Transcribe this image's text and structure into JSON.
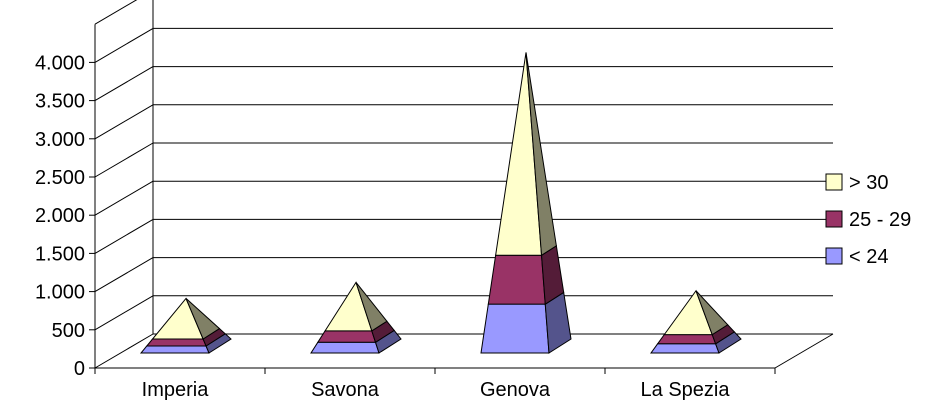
{
  "chart_data": {
    "type": "bar",
    "subtype": "3d-stacked-pyramid",
    "title": "",
    "xlabel": "",
    "ylabel": "",
    "categories": [
      "Imperia",
      "Savona",
      "Genova",
      "La Spezia"
    ],
    "series": [
      {
        "name": "< 24",
        "color": "#9999ff",
        "values": [
          100,
          150,
          650,
          130
        ]
      },
      {
        "name": "25 - 29",
        "color": "#993366",
        "values": [
          100,
          160,
          650,
          130
        ]
      },
      {
        "name": "> 30",
        "color": "#ffffcc",
        "values": [
          580,
          680,
          2700,
          620
        ]
      }
    ],
    "ylim": [
      0,
      4500
    ],
    "yticks": [
      0,
      500,
      1000,
      1500,
      2000,
      2500,
      3000,
      3500,
      4000
    ],
    "ytick_labels": [
      "0",
      "500",
      "1.000",
      "1.500",
      "2.000",
      "2.500",
      "3.000",
      "3.500",
      "4.000"
    ],
    "grid": true,
    "legend_position": "right"
  }
}
